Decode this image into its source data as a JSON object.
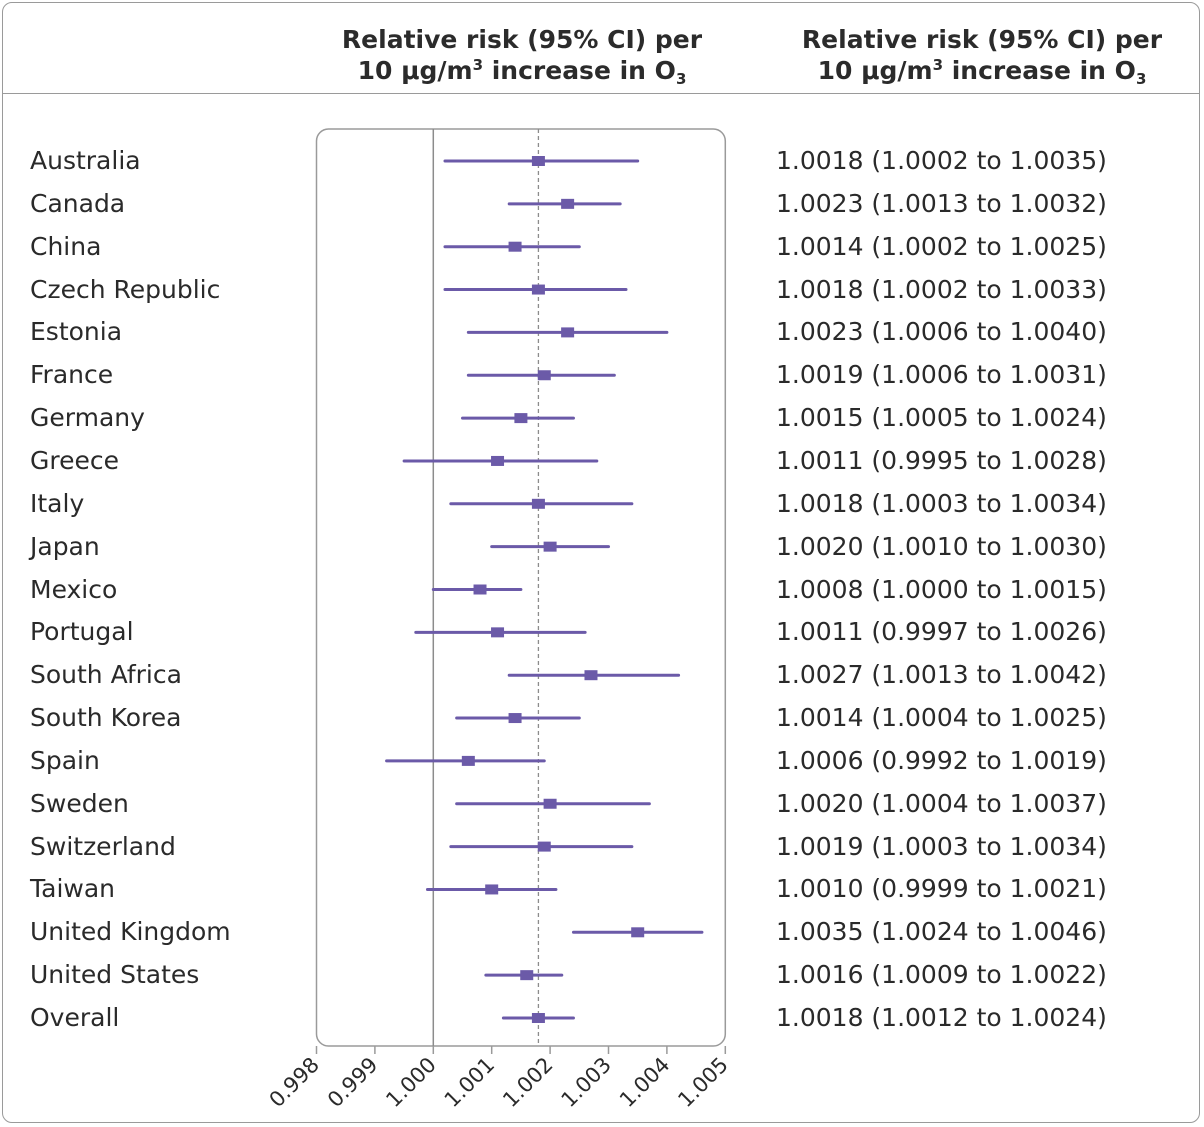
{
  "header": {
    "left": {
      "line1": "Relative risk (95% CI) per",
      "line2_pre": "10 μg/m",
      "line2_sup": "3",
      "line2_mid": " increase in O",
      "line2_sub": "3"
    },
    "right": {
      "line1": "Relative risk (95% CI) per",
      "line2_pre": "10 μg/m",
      "line2_sup": "3",
      "line2_mid": " increase in O",
      "line2_sub": "3"
    }
  },
  "chart_data": {
    "type": "forest",
    "xlim": [
      0.998,
      1.005
    ],
    "xticks": [
      "0.998",
      "0.999",
      "1.000",
      "1.001",
      "1.002",
      "1.003",
      "1.004",
      "1.005"
    ],
    "reference_line": 1.0,
    "overall_line": 1.0018,
    "marker_color": "#6b5aa8",
    "rows": [
      {
        "label": "Australia",
        "rr": 1.0018,
        "lo": 1.0002,
        "hi": 1.0035,
        "text": "1.0018 (1.0002 to 1.0035)"
      },
      {
        "label": "Canada",
        "rr": 1.0023,
        "lo": 1.0013,
        "hi": 1.0032,
        "text": "1.0023 (1.0013 to 1.0032)"
      },
      {
        "label": "China",
        "rr": 1.0014,
        "lo": 1.0002,
        "hi": 1.0025,
        "text": "1.0014 (1.0002 to 1.0025)"
      },
      {
        "label": "Czech Republic",
        "rr": 1.0018,
        "lo": 1.0002,
        "hi": 1.0033,
        "text": "1.0018 (1.0002 to 1.0033)"
      },
      {
        "label": "Estonia",
        "rr": 1.0023,
        "lo": 1.0006,
        "hi": 1.004,
        "text": "1.0023 (1.0006 to 1.0040)"
      },
      {
        "label": "France",
        "rr": 1.0019,
        "lo": 1.0006,
        "hi": 1.0031,
        "text": "1.0019 (1.0006 to 1.0031)"
      },
      {
        "label": "Germany",
        "rr": 1.0015,
        "lo": 1.0005,
        "hi": 1.0024,
        "text": "1.0015 (1.0005 to 1.0024)"
      },
      {
        "label": "Greece",
        "rr": 1.0011,
        "lo": 0.9995,
        "hi": 1.0028,
        "text": "1.0011 (0.9995 to 1.0028)"
      },
      {
        "label": "Italy",
        "rr": 1.0018,
        "lo": 1.0003,
        "hi": 1.0034,
        "text": "1.0018 (1.0003 to 1.0034)"
      },
      {
        "label": "Japan",
        "rr": 1.002,
        "lo": 1.001,
        "hi": 1.003,
        "text": "1.0020 (1.0010 to 1.0030)"
      },
      {
        "label": "Mexico",
        "rr": 1.0008,
        "lo": 1.0,
        "hi": 1.0015,
        "text": "1.0008 (1.0000 to 1.0015)"
      },
      {
        "label": "Portugal",
        "rr": 1.0011,
        "lo": 0.9997,
        "hi": 1.0026,
        "text": "1.0011 (0.9997 to 1.0026)"
      },
      {
        "label": "South Africa",
        "rr": 1.0027,
        "lo": 1.0013,
        "hi": 1.0042,
        "text": "1.0027 (1.0013 to 1.0042)"
      },
      {
        "label": "South Korea",
        "rr": 1.0014,
        "lo": 1.0004,
        "hi": 1.0025,
        "text": "1.0014 (1.0004 to 1.0025)"
      },
      {
        "label": "Spain",
        "rr": 1.0006,
        "lo": 0.9992,
        "hi": 1.0019,
        "text": "1.0006 (0.9992 to 1.0019)"
      },
      {
        "label": "Sweden",
        "rr": 1.002,
        "lo": 1.0004,
        "hi": 1.0037,
        "text": "1.0020 (1.0004 to 1.0037)"
      },
      {
        "label": "Switzerland",
        "rr": 1.0019,
        "lo": 1.0003,
        "hi": 1.0034,
        "text": "1.0019 (1.0003 to 1.0034)"
      },
      {
        "label": "Taiwan",
        "rr": 1.001,
        "lo": 0.9999,
        "hi": 1.0021,
        "text": "1.0010 (0.9999 to 1.0021)"
      },
      {
        "label": "United Kingdom",
        "rr": 1.0035,
        "lo": 1.0024,
        "hi": 1.0046,
        "text": "1.0035 (1.0024 to 1.0046)"
      },
      {
        "label": "United States",
        "rr": 1.0016,
        "lo": 1.0009,
        "hi": 1.0022,
        "text": "1.0016 (1.0009 to 1.0022)"
      },
      {
        "label": "Overall",
        "rr": 1.0018,
        "lo": 1.0012,
        "hi": 1.0024,
        "text": "1.0018 (1.0012 to 1.0024)"
      }
    ]
  }
}
